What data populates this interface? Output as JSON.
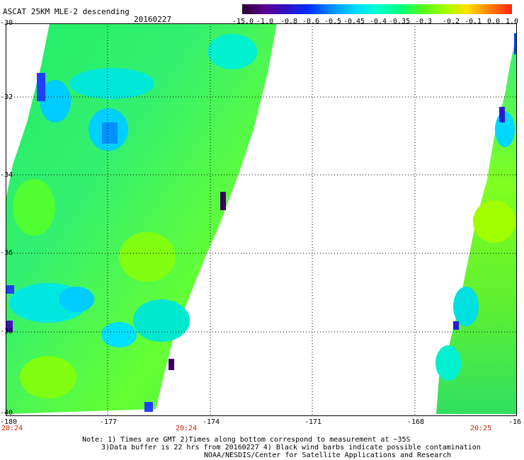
{
  "header": {
    "title": "ASCAT 25KM MLE-2 descending",
    "date": "20160227"
  },
  "colorbar": {
    "labels": [
      "-15.0",
      "-1.0",
      "-0.8",
      "-0.6",
      "-0.5",
      "-0.45",
      "-0.4",
      "-0.35",
      "-0.3",
      "-0.2",
      "-0.1",
      "0.0",
      "1.0"
    ],
    "colors": [
      "#2a0030",
      "#5a0090",
      "#3010c8",
      "#0030ff",
      "#0090ff",
      "#00d8ff",
      "#00ffd0",
      "#00ff80",
      "#50ff20",
      "#a0ff00",
      "#ffe000",
      "#ff8000",
      "#ff2000"
    ]
  },
  "map": {
    "lat_labels": [
      "-30",
      "-32",
      "-34",
      "-36",
      "-38",
      "-40"
    ],
    "lon_labels": [
      "-180",
      "-177",
      "-174",
      "-171",
      "-168",
      "-16"
    ],
    "time_labels": [
      "20:24",
      "20:24",
      "20:25"
    ],
    "grid": true
  },
  "note": {
    "line1": "Note: 1) Times are GMT 2)Times along bottom correspond to measurement at ~35S",
    "line2": "3)Data buffer is 22 hrs from 20160227 4) Black wind barbs indicate possible contamination",
    "line3": "NOAA/NESDIS/Center for Satellite Applications and Research"
  }
}
